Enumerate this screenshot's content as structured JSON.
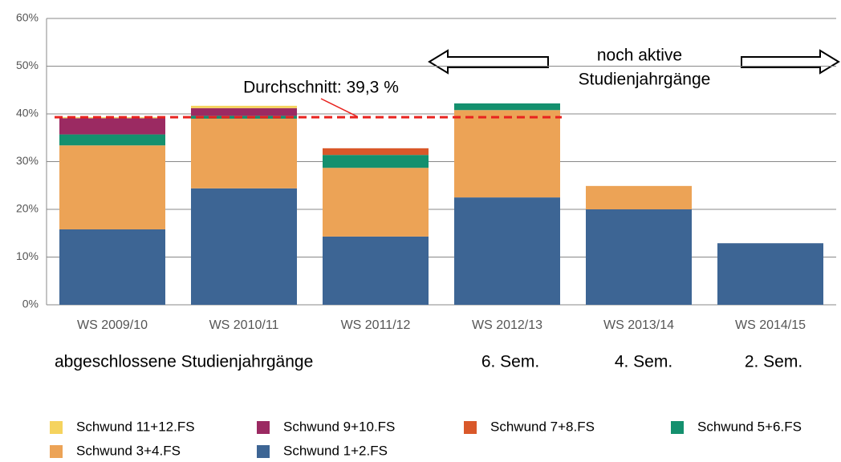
{
  "chart_data": {
    "type": "stacked_bar",
    "categories": [
      "WS 2009/10",
      "WS 2010/11",
      "WS 2011/12",
      "WS 2012/13",
      "WS 2013/14",
      "WS 2014/15"
    ],
    "series": [
      {
        "name": "Schwund 11+12.FS",
        "color": "#f5d35e",
        "values": [
          0.2,
          0.5,
          0,
          0,
          0,
          0
        ]
      },
      {
        "name": "Schwund 9+10.FS",
        "color": "#9b2a62",
        "values": [
          3.4,
          1.6,
          0,
          0,
          0,
          0
        ]
      },
      {
        "name": "Schwund 7+8.FS",
        "color": "#d9582a",
        "values": [
          0,
          0,
          1.4,
          0,
          0,
          0
        ]
      },
      {
        "name": "Schwund 5+6.FS",
        "color": "#14906e",
        "values": [
          2.3,
          0.6,
          2.7,
          1.4,
          0,
          0
        ]
      },
      {
        "name": "Schwund 3+4.FS",
        "color": "#eca356",
        "values": [
          17.6,
          14.6,
          14.4,
          18.3,
          4.9,
          0
        ]
      },
      {
        "name": "Schwund 1+2.FS",
        "color": "#3d6594",
        "values": [
          15.8,
          24.4,
          14.3,
          22.5,
          20.0,
          12.9
        ]
      }
    ],
    "ylim": [
      0,
      60
    ],
    "yticks": [
      {
        "value": 0,
        "label": "0%"
      },
      {
        "value": 10,
        "label": "10%"
      },
      {
        "value": 20,
        "label": "20%"
      },
      {
        "value": 30,
        "label": "30%"
      },
      {
        "value": 40,
        "label": "40%"
      },
      {
        "value": 50,
        "label": "50%"
      },
      {
        "value": 60,
        "label": "60%"
      }
    ],
    "grid": true,
    "average_line": {
      "value": 39.3,
      "label": "Durchschnitt: 39,3 %",
      "color": "#e8231f"
    },
    "active_note": [
      "noch aktive",
      "Studienjahrgänge"
    ],
    "group_labels": [
      "abgeschlossene Studienjahrgänge",
      "6. Sem.",
      "4. Sem.",
      "2. Sem."
    ]
  }
}
